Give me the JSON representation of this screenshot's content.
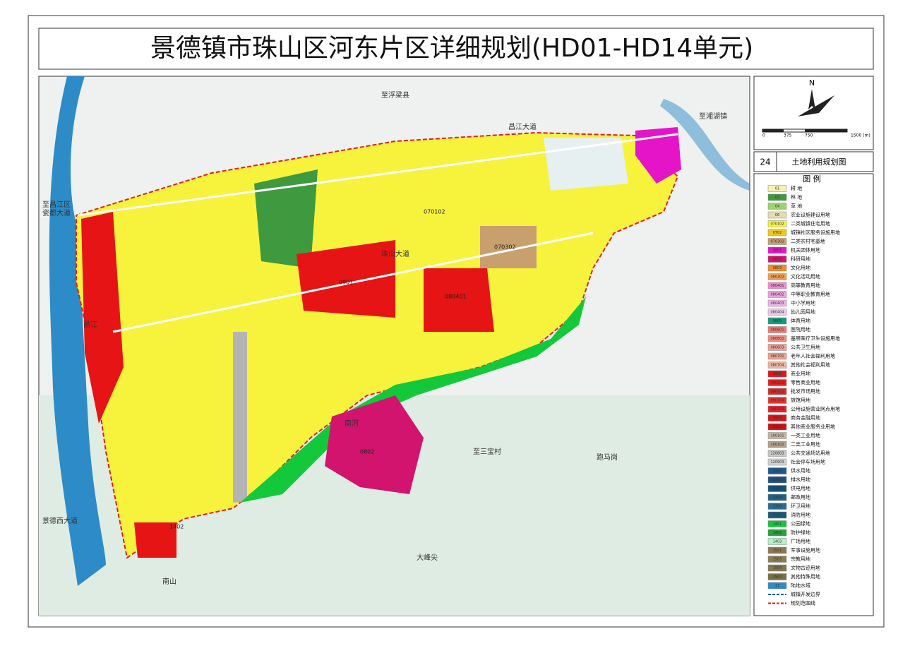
{
  "title": "景德镇市珠山区河东片区详细规划(HD01-HD14单元)",
  "compass": {
    "north": "N",
    "scale": [
      "0",
      "375",
      "750",
      "1500 (m)"
    ]
  },
  "panel": {
    "number": "24",
    "name": "土地利用规划图"
  },
  "legend": {
    "title": "图 例",
    "items": [
      {
        "code": "01",
        "name": "耕 地",
        "color": "#f5f0b4"
      },
      {
        "code": "03",
        "name": "林 地",
        "color": "#3f9a3f"
      },
      {
        "code": "04",
        "name": "草 地",
        "color": "#9dd36a"
      },
      {
        "code": "06",
        "name": "农业设施建设用地",
        "color": "#e6dcb4"
      },
      {
        "code": "070102",
        "name": "二类城镇住宅用地",
        "color": "#f7f23c"
      },
      {
        "code": "0702",
        "name": "城镇社区服务设施用地",
        "color": "#f0c814"
      },
      {
        "code": "070302",
        "name": "二类农村宅基地",
        "color": "#c8a06e"
      },
      {
        "code": "0801",
        "name": "机关团体用地",
        "color": "#e614c8"
      },
      {
        "code": "0802",
        "name": "科研用地",
        "color": "#d2146e"
      },
      {
        "code": "0803",
        "name": "文化用地",
        "color": "#f08c28"
      },
      {
        "code": "080302",
        "name": "文化活动用地",
        "color": "#f0a050"
      },
      {
        "code": "080401",
        "name": "高等教育用地",
        "color": "#f08cd2"
      },
      {
        "code": "080402",
        "name": "中等职业教育用地",
        "color": "#f0a0dc"
      },
      {
        "code": "080403",
        "name": "中小学用地",
        "color": "#f0b4e6"
      },
      {
        "code": "080404",
        "name": "幼儿园用地",
        "color": "#f0c8ec"
      },
      {
        "code": "0805",
        "name": "体育用地",
        "color": "#1e9678"
      },
      {
        "code": "080601",
        "name": "医院用地",
        "color": "#f0786e"
      },
      {
        "code": "080602",
        "name": "基层医疗卫生设施用地",
        "color": "#f08c82"
      },
      {
        "code": "080603",
        "name": "公共卫生用地",
        "color": "#f0a096"
      },
      {
        "code": "080701",
        "name": "老年人社会福利用地",
        "color": "#f0a08c"
      },
      {
        "code": "080704",
        "name": "其他社会福利用地",
        "color": "#f0b4a0"
      },
      {
        "code": "0901",
        "name": "商业用地",
        "color": "#e61414"
      },
      {
        "code": "090101",
        "name": "零售商业用地",
        "color": "#e61e1e"
      },
      {
        "code": "090102",
        "name": "批发市场用地",
        "color": "#dc2828"
      },
      {
        "code": "090104",
        "name": "旅馆用地",
        "color": "#e63232"
      },
      {
        "code": "090105",
        "name": "公用设施营业网点用地",
        "color": "#e61e28"
      },
      {
        "code": "0902",
        "name": "商务金融用地",
        "color": "#dc1414"
      },
      {
        "code": "0904",
        "name": "其他商业服务业用地",
        "color": "#c81414"
      },
      {
        "code": "100101",
        "name": "一类工业用地",
        "color": "#c8b4a0"
      },
      {
        "code": "100102",
        "name": "二类工业用地",
        "color": "#b4a08c"
      },
      {
        "code": "120803",
        "name": "公共交通场站用地",
        "color": "#c8c8c8"
      },
      {
        "code": "120903",
        "name": "社会停车场用地",
        "color": "#d2d2d2"
      },
      {
        "code": "1301",
        "name": "供水用地",
        "color": "#1e5a8c"
      },
      {
        "code": "1302",
        "name": "排水用地",
        "color": "#1e5082"
      },
      {
        "code": "1303",
        "name": "供电用地",
        "color": "#145078"
      },
      {
        "code": "1304",
        "name": "邮政用地",
        "color": "#1e6482"
      },
      {
        "code": "1309",
        "name": "环卫用地",
        "color": "#286e8c"
      },
      {
        "code": "1310",
        "name": "消防用地",
        "color": "#1e5a78"
      },
      {
        "code": "1401",
        "name": "公园绿地",
        "color": "#14c83c"
      },
      {
        "code": "1402",
        "name": "防护绿地",
        "color": "#28a03c"
      },
      {
        "code": "1403",
        "name": "广场用地",
        "color": "#b4f0c8"
      },
      {
        "code": "1501",
        "name": "军事设施用地",
        "color": "#8c7850"
      },
      {
        "code": "1503",
        "name": "宗教用地",
        "color": "#8c7d55"
      },
      {
        "code": "1504",
        "name": "文物古迹用地",
        "color": "#827850"
      },
      {
        "code": "1507",
        "name": "其他特殊用地",
        "color": "#786e46"
      },
      {
        "code": "17",
        "name": "陆地水域",
        "color": "#2d8cc8"
      },
      {
        "name": "城镇开发边界",
        "color": "#2850c8",
        "line": "dashed"
      },
      {
        "name": "规划范围线",
        "color": "#e61e1e",
        "line": "dashed"
      }
    ]
  },
  "map_labels": [
    "昌江大道",
    "南河",
    "跑马岗",
    "大峰尖",
    "南山",
    "至昌江区",
    "景德西大道",
    "昌江",
    "珠山大道",
    "至浮梁县",
    "至湘湖镇",
    "至三宝村",
    "瓷都大道",
    "070102",
    "0901",
    "1402",
    "0802",
    "070302",
    "080401"
  ]
}
